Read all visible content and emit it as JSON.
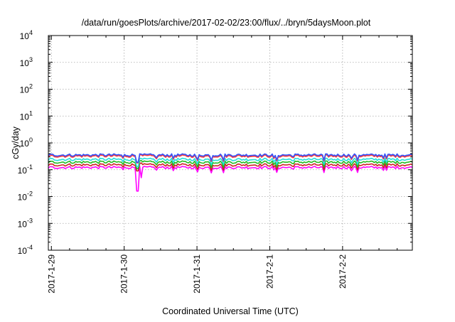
{
  "chart_data": {
    "type": "line",
    "title": "/data/run/goesPlots/archive/2017-02-02/23:00/flux/../bryn/5daysMoon.plot",
    "xlabel": "Coordinated Universal Time (UTC)",
    "ylabel": "cGy/day",
    "y_scale": "log",
    "ylim": [
      0.0001,
      10000
    ],
    "y_ticks": [
      {
        "value": 0.0001,
        "base": "10",
        "exp": "-4"
      },
      {
        "value": 0.001,
        "base": "10",
        "exp": "-3"
      },
      {
        "value": 0.01,
        "base": "10",
        "exp": "-2"
      },
      {
        "value": 0.1,
        "base": "10",
        "exp": "-1"
      },
      {
        "value": 1,
        "base": "10",
        "exp": "0"
      },
      {
        "value": 10,
        "base": "10",
        "exp": "1"
      },
      {
        "value": 100,
        "base": "10",
        "exp": "2"
      },
      {
        "value": 1000,
        "base": "10",
        "exp": "3"
      },
      {
        "value": 10000,
        "base": "10",
        "exp": "4"
      }
    ],
    "xlim": [
      "2017-01-28T23:00",
      "2017-02-02T23:00"
    ],
    "x_ticks": [
      {
        "value": "2017-01-29T00:00",
        "label": "2017-1-29"
      },
      {
        "value": "2017-01-30T00:00",
        "label": "2017-1-30"
      },
      {
        "value": "2017-01-31T00:00",
        "label": "2017-1-31"
      },
      {
        "value": "2017-02-01T00:00",
        "label": "2017-2-1"
      },
      {
        "value": "2017-02-02T00:00",
        "label": "2017-2-2"
      }
    ],
    "grid": true,
    "series": [
      {
        "color": "#ff00ff",
        "level": 0.12,
        "min": 0.016,
        "min_at": "2017-01-30T04:30"
      },
      {
        "color": "#cc2222",
        "level": 0.15,
        "min": 0.09,
        "min_at": "2017-01-30T04:30"
      },
      {
        "color": "#22bb22",
        "level": 0.19,
        "min": 0.11,
        "min_at": "2017-01-30T04:30"
      },
      {
        "color": "#22dddd",
        "level": 0.24,
        "min": 0.13,
        "min_at": "2017-01-30T04:30"
      },
      {
        "color": "#ff3333",
        "level": 0.32,
        "min": 0.18,
        "min_at": "2017-01-30T04:30"
      },
      {
        "color": "#3355ff",
        "level": 0.35,
        "min": 0.19,
        "min_at": "2017-01-30T04:30"
      }
    ]
  }
}
